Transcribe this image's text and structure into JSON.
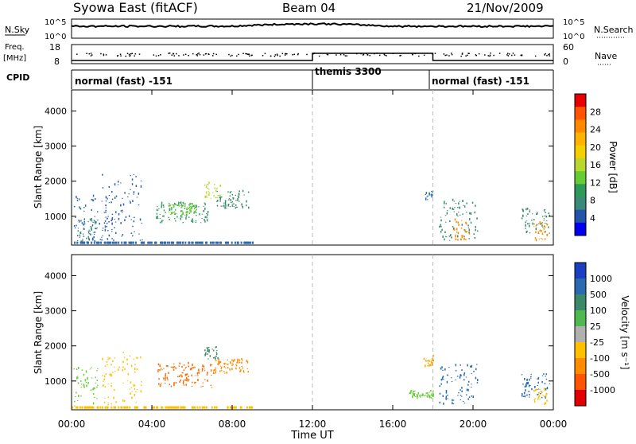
{
  "header": {
    "title": "Syowa East (fitACF)",
    "beam": "Beam 04",
    "date": "21/Nov/2009"
  },
  "noise_panel": {
    "left_label": "N.Sky",
    "right_label": "N.Search",
    "left_ticks": [
      "10^5",
      "10^0"
    ],
    "right_ticks": [
      "10^5",
      "10^0"
    ]
  },
  "freq_panel": {
    "left_label_1": "Freq.",
    "left_label_2": "[MHz]",
    "right_label": "Nave",
    "left_ticks": [
      "18",
      "8"
    ],
    "right_ticks": [
      "60",
      "0"
    ]
  },
  "cpid_panel": {
    "label": "CPID",
    "modes": [
      {
        "name": "normal (fast) -151",
        "start_hour": 0,
        "end_hour": 12
      },
      {
        "name": "themis 3300",
        "start_hour": 12,
        "end_hour": 18
      },
      {
        "name": "normal (fast) -151",
        "start_hour": 18,
        "end_hour": 24
      }
    ]
  },
  "colorbars": {
    "power": {
      "label": "Power [dB]",
      "tick_labels": [
        "28",
        "24",
        "20",
        "16",
        "12",
        "8",
        "4"
      ],
      "colors": [
        "#e60000",
        "#ff5500",
        "#ff8800",
        "#ffb300",
        "#f5d000",
        "#b8d830",
        "#66cc33",
        "#2e9a5a",
        "#3a8a7a",
        "#2255aa",
        "#0000ee"
      ]
    },
    "velocity": {
      "label": "Velocity [m s⁻¹]",
      "tick_labels": [
        "1000",
        "500",
        "100",
        "25",
        "-25",
        "-100",
        "-500",
        "-1000"
      ],
      "colors": [
        "#1a3fc0",
        "#2a6ab0",
        "#3a8a6a",
        "#4fb84f",
        "#b0b0b0",
        "#ffc000",
        "#ff8c00",
        "#ff5500",
        "#e00000"
      ]
    }
  },
  "chart_data": [
    {
      "type": "heatmap",
      "title": "Power",
      "ylabel": "Slant Range [km]",
      "xlim": [
        0,
        24
      ],
      "ylim": [
        180,
        4600
      ],
      "yticks": [
        1000,
        2000,
        3000,
        4000
      ],
      "patches": [
        {
          "t0": 0.1,
          "t1": 2.2,
          "r0": 200,
          "r1": 1600,
          "c": "#2a6ab0"
        },
        {
          "t0": 0.3,
          "t1": 1.2,
          "r0": 250,
          "r1": 900,
          "c": "#3a8a6a"
        },
        {
          "t0": 1.5,
          "t1": 3.5,
          "r0": 300,
          "r1": 2200,
          "c": "#2a5ab0"
        },
        {
          "t0": 4.2,
          "t1": 6.8,
          "r0": 800,
          "r1": 1400,
          "c": "#3a9a6a"
        },
        {
          "t0": 4.8,
          "t1": 6.2,
          "r0": 1000,
          "r1": 1350,
          "c": "#66cc33"
        },
        {
          "t0": 6.6,
          "t1": 7.4,
          "r0": 1500,
          "r1": 1950,
          "c": "#b8d830"
        },
        {
          "t0": 7.2,
          "t1": 8.8,
          "r0": 1200,
          "r1": 1700,
          "c": "#3a8a6a"
        },
        {
          "t0": 17.6,
          "t1": 18.0,
          "r0": 1450,
          "r1": 1700,
          "c": "#2a6ab0"
        },
        {
          "t0": 18.3,
          "t1": 20.2,
          "r0": 300,
          "r1": 1500,
          "c": "#3a8a6a"
        },
        {
          "t0": 19.0,
          "t1": 19.8,
          "r0": 300,
          "r1": 900,
          "c": "#ff8800"
        },
        {
          "t0": 22.4,
          "t1": 23.8,
          "r0": 500,
          "r1": 1200,
          "c": "#3a8a6a"
        },
        {
          "t0": 23.0,
          "t1": 23.7,
          "r0": 300,
          "r1": 800,
          "c": "#ff8c00"
        }
      ]
    },
    {
      "type": "heatmap",
      "title": "Velocity",
      "ylabel": "Slant Range [km]",
      "xlabel": "Time UT",
      "xlim": [
        0,
        24
      ],
      "ylim": [
        180,
        4600
      ],
      "yticks": [
        1000,
        2000,
        3000,
        4000
      ],
      "xticks": [
        "00:00",
        "04:00",
        "08:00",
        "12:00",
        "16:00",
        "20:00",
        "00:00"
      ],
      "patches": [
        {
          "t0": 0.1,
          "t1": 1.3,
          "r0": 200,
          "r1": 1400,
          "c": "#66cc33"
        },
        {
          "t0": 1.5,
          "t1": 3.5,
          "r0": 300,
          "r1": 1800,
          "c": "#ffc000"
        },
        {
          "t0": 4.2,
          "t1": 7.0,
          "r0": 800,
          "r1": 1500,
          "c": "#ff6a00"
        },
        {
          "t0": 7.0,
          "t1": 8.8,
          "r0": 1200,
          "r1": 1600,
          "c": "#ff8c00"
        },
        {
          "t0": 6.6,
          "t1": 7.3,
          "r0": 1600,
          "r1": 1950,
          "c": "#3a8a6a"
        },
        {
          "t0": 17.5,
          "t1": 18.0,
          "r0": 1400,
          "r1": 1700,
          "c": "#ffa500"
        },
        {
          "t0": 18.3,
          "t1": 20.2,
          "r0": 300,
          "r1": 1500,
          "c": "#2a6ab0"
        },
        {
          "t0": 16.8,
          "t1": 18.0,
          "r0": 500,
          "r1": 700,
          "c": "#66cc33"
        },
        {
          "t0": 22.4,
          "t1": 23.8,
          "r0": 500,
          "r1": 1200,
          "c": "#2a6ab0"
        },
        {
          "t0": 23.0,
          "t1": 23.7,
          "r0": 300,
          "r1": 800,
          "c": "#ffc000"
        }
      ]
    }
  ]
}
